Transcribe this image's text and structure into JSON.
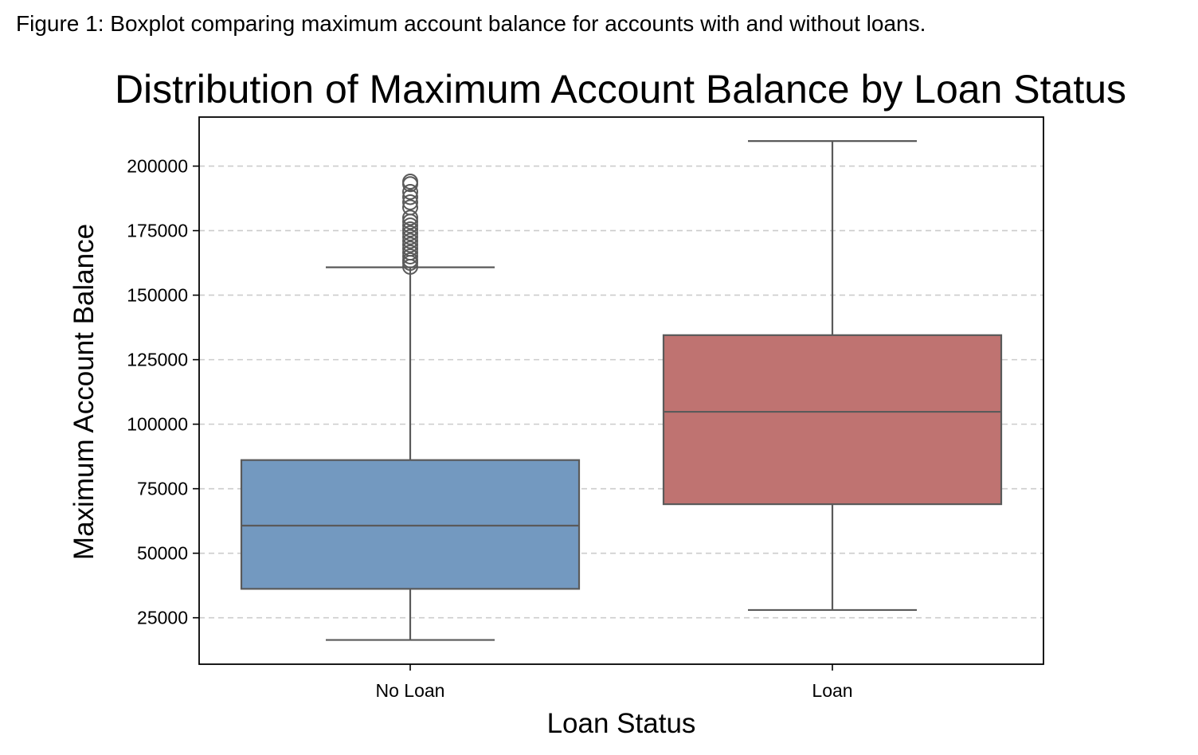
{
  "caption": "Figure 1: Boxplot comparing maximum account balance for accounts with and without loans.",
  "chart_data": {
    "type": "boxplot",
    "title": "Distribution of Maximum Account Balance by Loan Status",
    "xlabel": "Loan Status",
    "ylabel": "Maximum Account Balance",
    "ylim": [
      7000,
      219000
    ],
    "yticks": [
      25000,
      50000,
      75000,
      100000,
      125000,
      150000,
      175000,
      200000
    ],
    "grid": "y, dashed",
    "categories": [
      "No Loan",
      "Loan"
    ],
    "boxes": [
      {
        "category": "No Loan",
        "color": "#7399C0",
        "whisker_low": 16400,
        "q1": 36200,
        "median": 60700,
        "q3": 86100,
        "whisker_high": 160800,
        "outliers": [
          161000,
          162500,
          163500,
          165000,
          166500,
          168000,
          169500,
          171000,
          172500,
          174000,
          175500,
          177000,
          178500,
          180000,
          184000,
          186000,
          188000,
          190000,
          193000,
          194000
        ]
      },
      {
        "category": "Loan",
        "color": "#BF7371",
        "whisker_low": 28000,
        "q1": 69000,
        "median": 104800,
        "q3": 134500,
        "whisker_high": 209700,
        "outliers": []
      }
    ]
  }
}
